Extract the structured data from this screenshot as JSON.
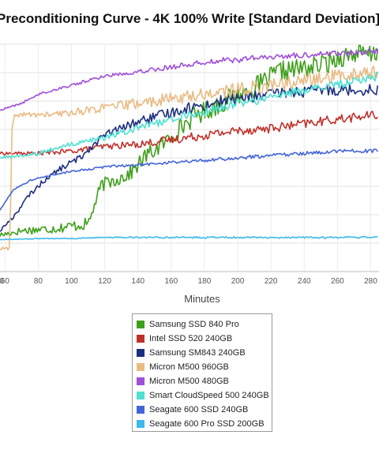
{
  "chart_data": {
    "type": "line",
    "title": "Preconditioning Curve - 4K 100% Write [Standard Deviation]",
    "xlabel": "Minutes",
    "ylabel": "",
    "x_tick_labels": [
      "0",
      "40",
      "60",
      "80",
      "100",
      "120",
      "140",
      "160",
      "180",
      "200",
      "220",
      "240",
      "260",
      "280"
    ],
    "xlim": [
      57,
      285
    ],
    "ylim": [
      0,
      1
    ],
    "grid": true,
    "legend_position": "bottom",
    "series": [
      {
        "name": "Samsung SSD 840 Pro",
        "color": "#3f9f1a",
        "points": [
          [
            57,
            0.16
          ],
          [
            70,
            0.18
          ],
          [
            90,
            0.19
          ],
          [
            110,
            0.21
          ],
          [
            118,
            0.38
          ],
          [
            125,
            0.4
          ],
          [
            135,
            0.43
          ],
          [
            145,
            0.51
          ],
          [
            155,
            0.56
          ],
          [
            165,
            0.63
          ],
          [
            175,
            0.69
          ],
          [
            185,
            0.72
          ],
          [
            195,
            0.76
          ],
          [
            205,
            0.79
          ],
          [
            215,
            0.83
          ],
          [
            225,
            0.88
          ],
          [
            235,
            0.89
          ],
          [
            245,
            0.9
          ],
          [
            255,
            0.92
          ],
          [
            260,
            0.94
          ],
          [
            270,
            0.96
          ],
          [
            280,
            0.95
          ],
          [
            285,
            0.97
          ]
        ]
      },
      {
        "name": "Intel SSD 520 240GB",
        "color": "#c0302a",
        "points": [
          [
            57,
            0.52
          ],
          [
            80,
            0.52
          ],
          [
            100,
            0.53
          ],
          [
            120,
            0.55
          ],
          [
            140,
            0.56
          ],
          [
            160,
            0.58
          ],
          [
            180,
            0.6
          ],
          [
            200,
            0.62
          ],
          [
            220,
            0.63
          ],
          [
            240,
            0.65
          ],
          [
            260,
            0.67
          ],
          [
            285,
            0.69
          ]
        ]
      },
      {
        "name": "Samsung SM843 240GB",
        "color": "#1c2f7f",
        "points": [
          [
            57,
            0.18
          ],
          [
            65,
            0.24
          ],
          [
            75,
            0.34
          ],
          [
            85,
            0.41
          ],
          [
            95,
            0.46
          ],
          [
            105,
            0.5
          ],
          [
            115,
            0.57
          ],
          [
            120,
            0.6
          ],
          [
            130,
            0.63
          ],
          [
            140,
            0.66
          ],
          [
            150,
            0.68
          ],
          [
            160,
            0.7
          ],
          [
            170,
            0.72
          ],
          [
            180,
            0.73
          ],
          [
            190,
            0.75
          ],
          [
            200,
            0.76
          ],
          [
            210,
            0.77
          ],
          [
            220,
            0.78
          ],
          [
            230,
            0.79
          ],
          [
            240,
            0.79
          ],
          [
            250,
            0.8
          ],
          [
            260,
            0.8
          ],
          [
            270,
            0.8
          ],
          [
            285,
            0.8
          ]
        ]
      },
      {
        "name": "Micron M500 960GB",
        "color": "#e9bb84",
        "points": [
          [
            57,
            0.1
          ],
          [
            63,
            0.1
          ],
          [
            64,
            0.61
          ],
          [
            66,
            0.69
          ],
          [
            80,
            0.69
          ],
          [
            90,
            0.69
          ],
          [
            100,
            0.7
          ],
          [
            110,
            0.71
          ],
          [
            120,
            0.72
          ],
          [
            130,
            0.73
          ],
          [
            140,
            0.74
          ],
          [
            150,
            0.75
          ],
          [
            160,
            0.76
          ],
          [
            170,
            0.77
          ],
          [
            180,
            0.78
          ],
          [
            190,
            0.79
          ],
          [
            200,
            0.8
          ],
          [
            210,
            0.81
          ],
          [
            220,
            0.82
          ],
          [
            230,
            0.83
          ],
          [
            240,
            0.84
          ],
          [
            250,
            0.85
          ],
          [
            260,
            0.86
          ],
          [
            270,
            0.87
          ],
          [
            285,
            0.88
          ]
        ]
      },
      {
        "name": "Micron M500 480GB",
        "color": "#9e4fd8",
        "points": [
          [
            57,
            0.71
          ],
          [
            70,
            0.74
          ],
          [
            80,
            0.78
          ],
          [
            90,
            0.8
          ],
          [
            100,
            0.82
          ],
          [
            110,
            0.84
          ],
          [
            120,
            0.86
          ],
          [
            130,
            0.87
          ],
          [
            140,
            0.88
          ],
          [
            150,
            0.89
          ],
          [
            160,
            0.9
          ],
          [
            170,
            0.91
          ],
          [
            180,
            0.92
          ],
          [
            190,
            0.93
          ],
          [
            200,
            0.93
          ],
          [
            210,
            0.94
          ],
          [
            220,
            0.94
          ],
          [
            230,
            0.95
          ],
          [
            240,
            0.95
          ],
          [
            250,
            0.96
          ],
          [
            260,
            0.96
          ],
          [
            270,
            0.96
          ],
          [
            285,
            0.97
          ]
        ]
      },
      {
        "name": "Smart CloudSpeed 500 240GB",
        "color": "#4fe0d3",
        "points": [
          [
            57,
            0.5
          ],
          [
            70,
            0.51
          ],
          [
            80,
            0.52
          ],
          [
            90,
            0.54
          ],
          [
            100,
            0.56
          ],
          [
            110,
            0.57
          ],
          [
            120,
            0.59
          ],
          [
            130,
            0.61
          ],
          [
            140,
            0.63
          ],
          [
            150,
            0.65
          ],
          [
            160,
            0.67
          ],
          [
            170,
            0.69
          ],
          [
            180,
            0.7
          ],
          [
            190,
            0.72
          ],
          [
            200,
            0.74
          ],
          [
            210,
            0.75
          ],
          [
            220,
            0.77
          ],
          [
            230,
            0.78
          ],
          [
            240,
            0.8
          ],
          [
            250,
            0.81
          ],
          [
            260,
            0.82
          ],
          [
            270,
            0.84
          ],
          [
            285,
            0.86
          ]
        ]
      },
      {
        "name": "Seagate 600 SSD 240GB",
        "color": "#4465d8",
        "points": [
          [
            57,
            0.27
          ],
          [
            65,
            0.36
          ],
          [
            75,
            0.4
          ],
          [
            85,
            0.42
          ],
          [
            100,
            0.44
          ],
          [
            120,
            0.46
          ],
          [
            140,
            0.47
          ],
          [
            160,
            0.48
          ],
          [
            180,
            0.49
          ],
          [
            200,
            0.5
          ],
          [
            220,
            0.51
          ],
          [
            240,
            0.52
          ],
          [
            260,
            0.53
          ],
          [
            285,
            0.53
          ]
        ]
      },
      {
        "name": "Seagate 600 Pro SSD 200GB",
        "color": "#3fb9ec",
        "points": [
          [
            57,
            0.14
          ],
          [
            80,
            0.145
          ],
          [
            100,
            0.145
          ],
          [
            120,
            0.15
          ],
          [
            140,
            0.15
          ],
          [
            160,
            0.15
          ],
          [
            180,
            0.15
          ],
          [
            200,
            0.15
          ],
          [
            220,
            0.15
          ],
          [
            240,
            0.15
          ],
          [
            260,
            0.15
          ],
          [
            285,
            0.15
          ]
        ]
      }
    ]
  }
}
